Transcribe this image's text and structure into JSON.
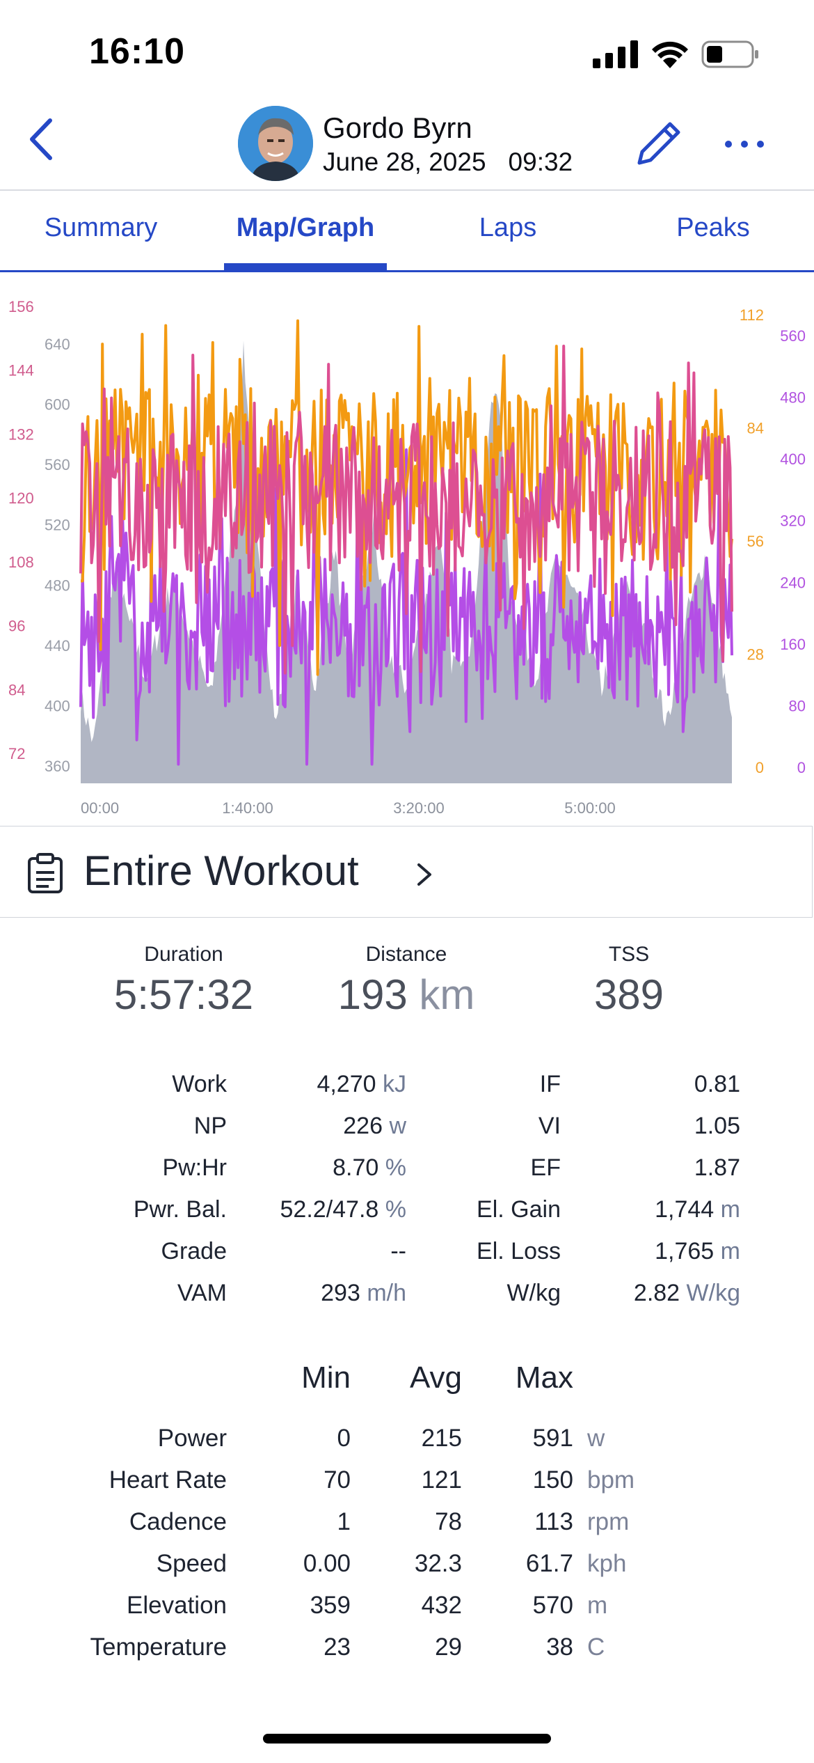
{
  "status_bar": {
    "time": "16:10"
  },
  "header": {
    "name": "Gordo Byrn",
    "date": "June 28, 2025",
    "time": "09:32"
  },
  "tabs": [
    {
      "label": "Summary"
    },
    {
      "label": "Map/Graph"
    },
    {
      "label": "Laps"
    },
    {
      "label": "Peaks"
    }
  ],
  "chart_data": {
    "type": "area",
    "x_ticks": [
      "00:00",
      "1:40:00",
      "3:20:00",
      "5:00:00"
    ],
    "axes": {
      "heart_rate_left": [
        156,
        144,
        132,
        120,
        108,
        96,
        84,
        72
      ],
      "elevation_left": [
        640,
        600,
        560,
        520,
        480,
        440,
        400,
        360
      ],
      "cadence_right": [
        112,
        84,
        56,
        28,
        0
      ],
      "power_right": [
        560,
        480,
        400,
        320,
        240,
        160,
        80,
        0
      ]
    },
    "colors": {
      "heart_rate": "#dd4f92",
      "elevation": "#a9aebe",
      "cadence": "#f39a12",
      "power": "#b44ee6",
      "hr_axis": "#d05c8d",
      "elev_axis": "#9a9ea8",
      "cad_axis": "#f1a02a",
      "pow_axis": "#b152e0"
    }
  },
  "workout": {
    "title": "Entire Workout"
  },
  "summary": [
    {
      "label": "Duration",
      "value": "5:57:32",
      "unit": ""
    },
    {
      "label": "Distance",
      "value": "193",
      "unit": "km"
    },
    {
      "label": "TSS",
      "value": "389",
      "unit": ""
    }
  ],
  "metrics_left": [
    {
      "label": "Work",
      "value": "4,270",
      "unit": "kJ"
    },
    {
      "label": "NP",
      "value": "226",
      "unit": "w"
    },
    {
      "label": "Pw:Hr",
      "value": "8.70",
      "unit": "%"
    },
    {
      "label": "Pwr. Bal.",
      "value": "52.2/47.8",
      "unit": "%"
    },
    {
      "label": "Grade",
      "value": "--",
      "unit": ""
    },
    {
      "label": "VAM",
      "value": "293",
      "unit": "m/h"
    }
  ],
  "metrics_right": [
    {
      "label": "IF",
      "value": "0.81",
      "unit": ""
    },
    {
      "label": "VI",
      "value": "1.05",
      "unit": ""
    },
    {
      "label": "EF",
      "value": "1.87",
      "unit": ""
    },
    {
      "label": "El. Gain",
      "value": "1,744",
      "unit": "m"
    },
    {
      "label": "El. Loss",
      "value": "1,765",
      "unit": "m"
    },
    {
      "label": "W/kg",
      "value": "2.82",
      "unit": "W/kg"
    }
  ],
  "stats_table": {
    "headers": [
      "Min",
      "Avg",
      "Max"
    ],
    "rows": [
      {
        "label": "Power",
        "min": "0",
        "avg": "215",
        "max": "591",
        "unit": "w"
      },
      {
        "label": "Heart Rate",
        "min": "70",
        "avg": "121",
        "max": "150",
        "unit": "bpm"
      },
      {
        "label": "Cadence",
        "min": "1",
        "avg": "78",
        "max": "113",
        "unit": "rpm"
      },
      {
        "label": "Speed",
        "min": "0.00",
        "avg": "32.3",
        "max": "61.7",
        "unit": "kph"
      },
      {
        "label": "Elevation",
        "min": "359",
        "avg": "432",
        "max": "570",
        "unit": "m"
      },
      {
        "label": "Temperature",
        "min": "23",
        "avg": "29",
        "max": "38",
        "unit": "C"
      }
    ]
  }
}
